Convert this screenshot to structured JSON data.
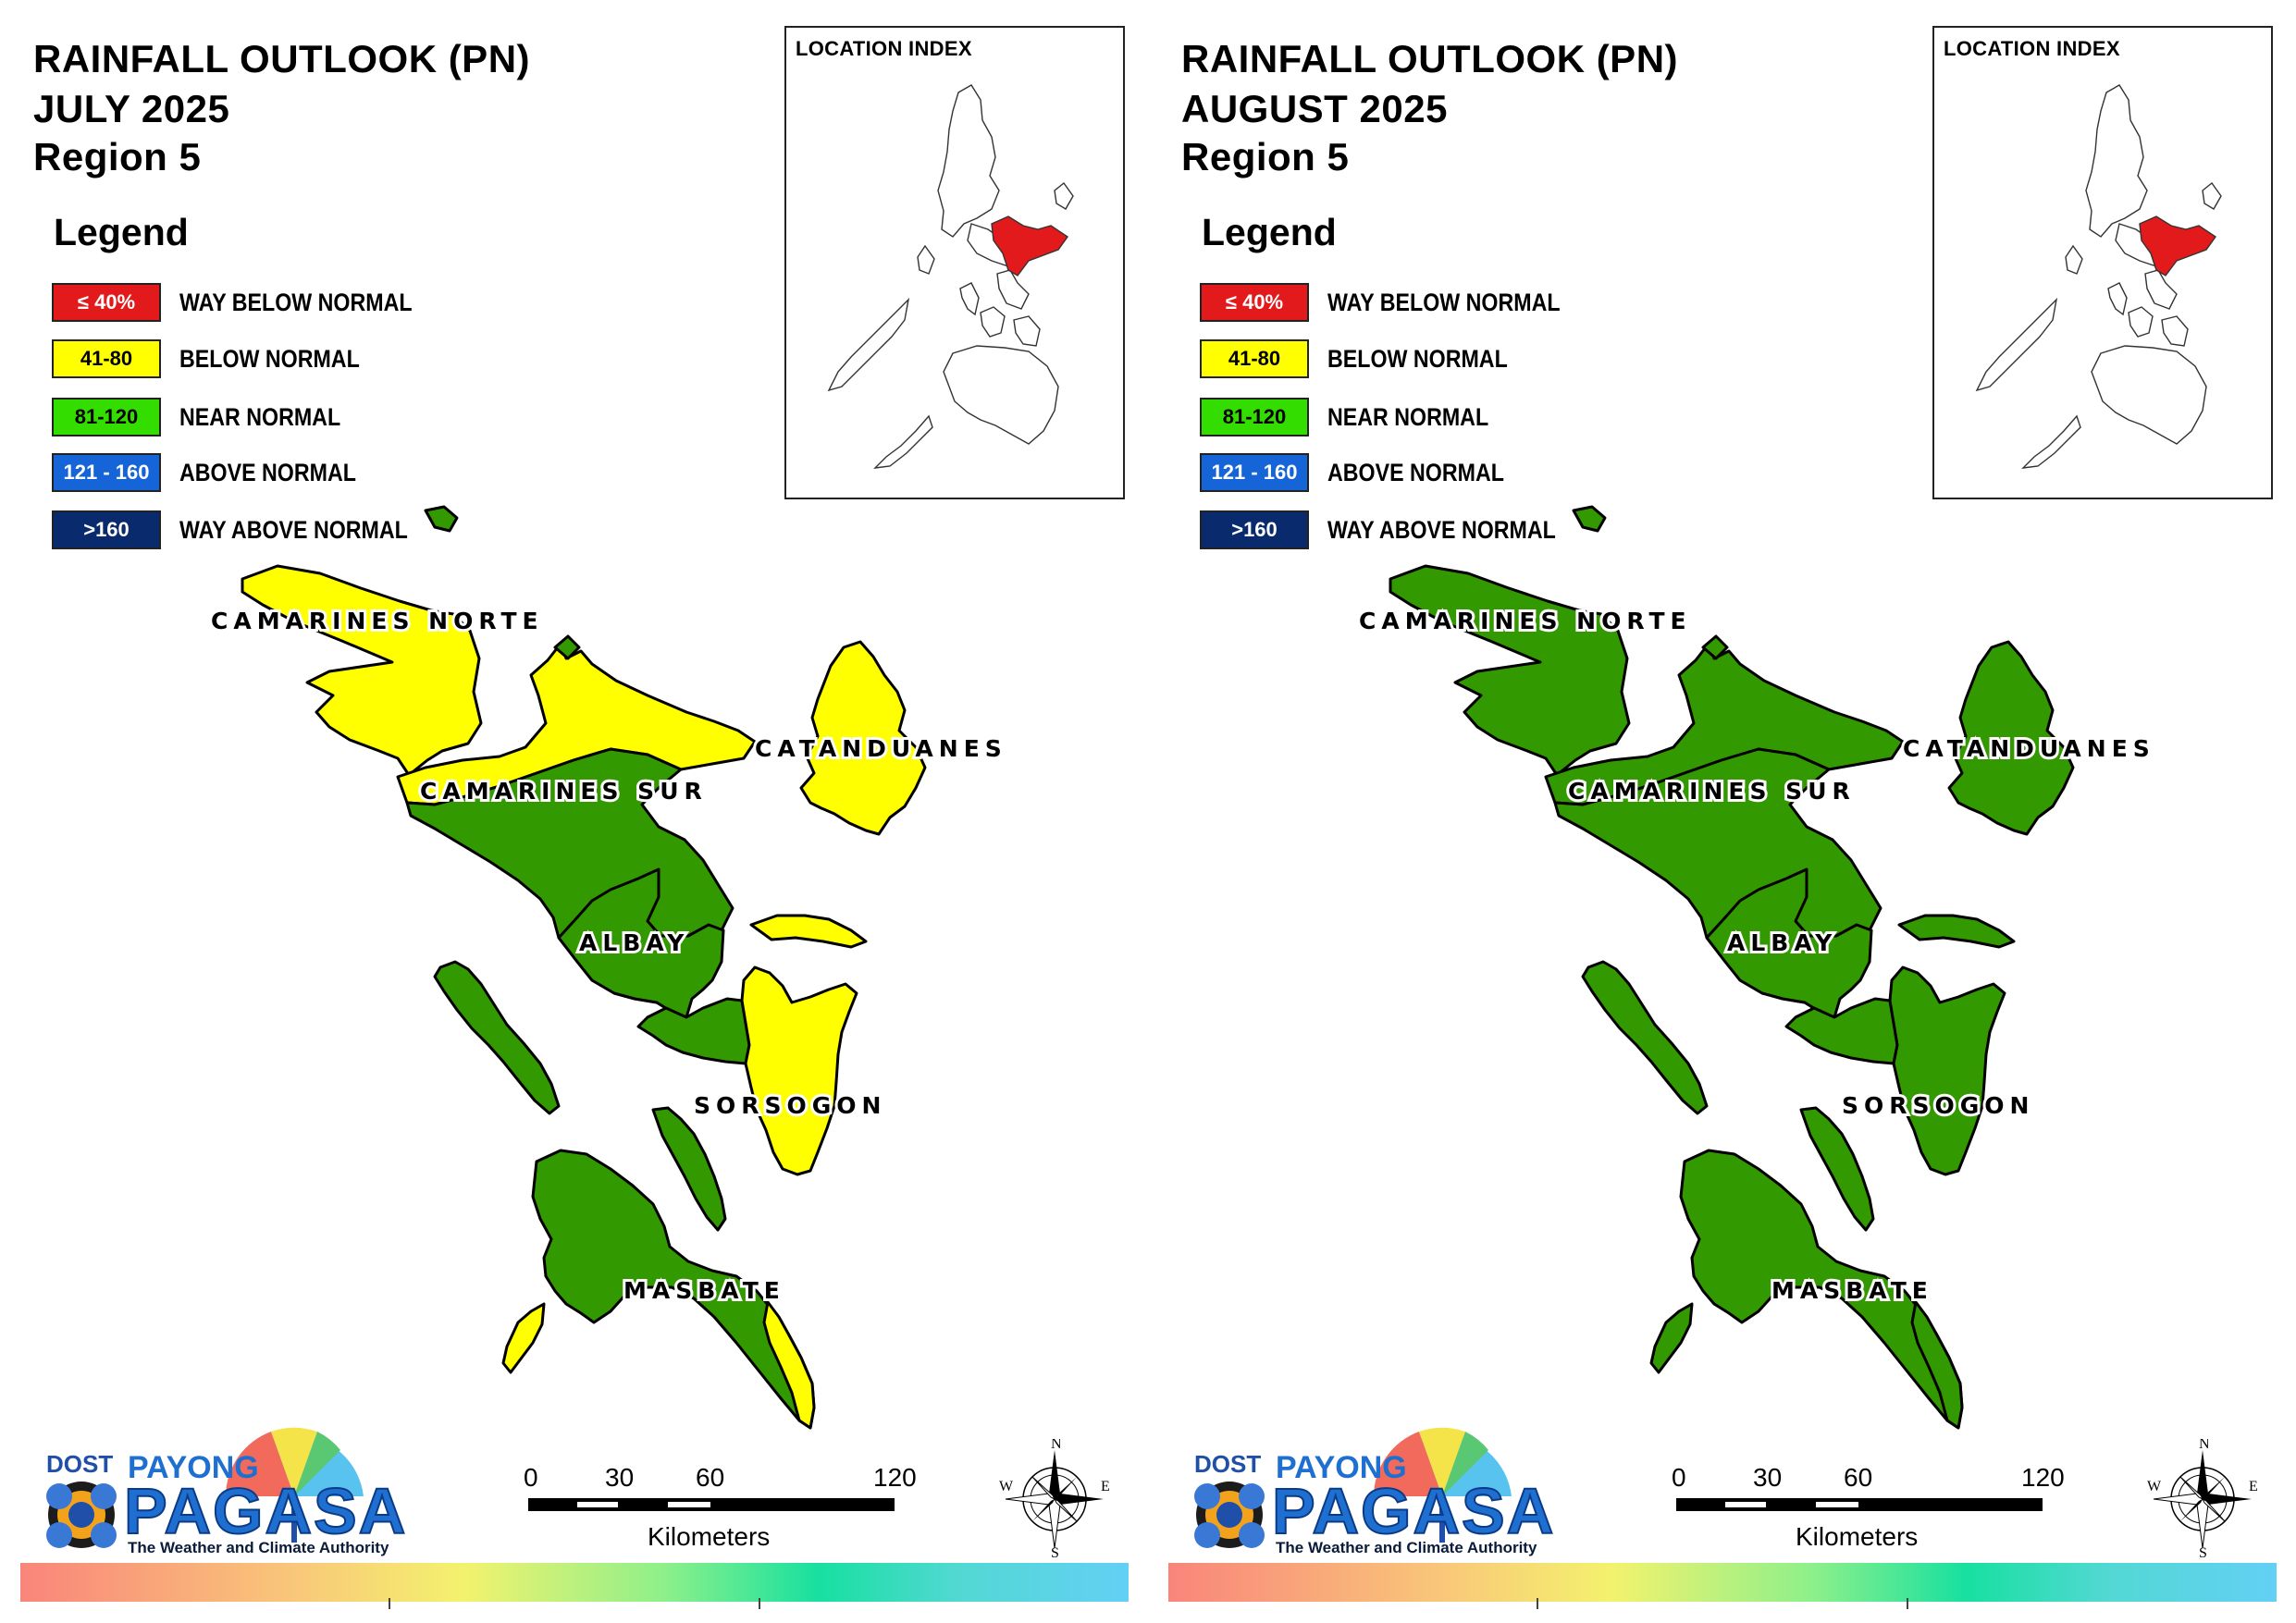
{
  "panels": [
    {
      "title": [
        "RAINFALL OUTLOOK (PN)",
        "JULY 2025",
        "Region 5"
      ],
      "province_colors": {
        "camarines_norte": "#ffff00",
        "camarines_sur_north": "#ffff00",
        "camarines_sur_south": "#339900",
        "catanduanes": "#ffff00",
        "albay": "#339900",
        "sorsogon_west": "#339900",
        "sorsogon_east": "#ffff00",
        "masbate": "#339900",
        "masbate_tip": "#ffff00"
      }
    },
    {
      "title": [
        "RAINFALL OUTLOOK (PN)",
        "AUGUST 2025",
        "Region 5"
      ],
      "province_colors": {
        "camarines_norte": "#339900",
        "camarines_sur_north": "#339900",
        "camarines_sur_south": "#339900",
        "catanduanes": "#339900",
        "albay": "#339900",
        "sorsogon_west": "#339900",
        "sorsogon_east": "#339900",
        "masbate": "#339900",
        "masbate_tip": "#339900"
      }
    }
  ],
  "legend": {
    "title": "Legend",
    "items": [
      {
        "range": "≤ 40%",
        "label": "WAY BELOW NORMAL",
        "color": "#e31a1c",
        "text_color": "#ffffff"
      },
      {
        "range": "41-80",
        "label": "BELOW NORMAL",
        "color": "#ffff00",
        "text_color": "#000000"
      },
      {
        "range": "81-120",
        "label": "NEAR NORMAL",
        "color": "#33dd00",
        "text_color": "#000000"
      },
      {
        "range": "121 - 160",
        "label": "ABOVE NORMAL",
        "color": "#1565d8",
        "text_color": "#ffffff"
      },
      {
        "range": ">160",
        "label": "WAY ABOVE NORMAL",
        "color": "#0a2a6e",
        "text_color": "#ffffff"
      }
    ]
  },
  "location_index": {
    "title": "LOCATION INDEX",
    "highlight_color": "#e31a1c"
  },
  "provinces": {
    "camarines_norte": "CAMARINES NORTE",
    "camarines_sur": "CAMARINES SUR",
    "catanduanes": "CATANDUANES",
    "albay": "ALBAY",
    "sorsogon": "SORSOGON",
    "masbate": "MASBATE"
  },
  "scale_bar": {
    "ticks": [
      "0",
      "30",
      "60",
      "120"
    ],
    "units": "Kilometers"
  },
  "compass": {
    "n": "N",
    "s": "S",
    "e": "E",
    "w": "W"
  },
  "logo": {
    "dost": "DOST",
    "payong": "PAYONG",
    "pagasa": "PAGASA",
    "tagline": "The Weather and Climate Authority"
  }
}
